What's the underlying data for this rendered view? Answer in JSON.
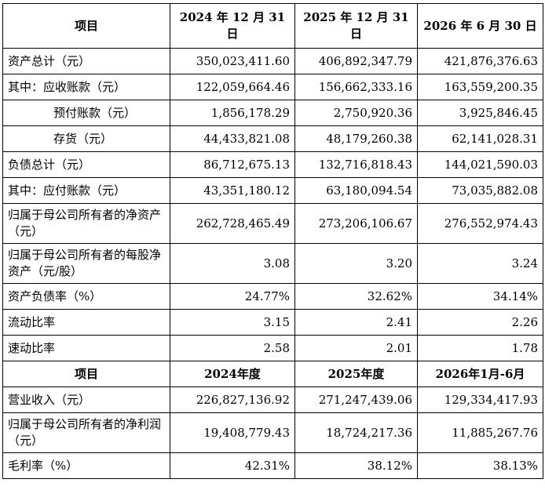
{
  "header1": {
    "col0": "项目",
    "col1": "2024 年 12 月 31 日",
    "col2": "2025 年 12 月 31 日",
    "col3": "2026 年 6 月 30 日"
  },
  "balance_rows": [
    {
      "label": "资产总计（元）",
      "v1": "350,023,411.60",
      "v2": "406,892,347.79",
      "v3": "421,876,376.63"
    },
    {
      "label": "其中：应收账款（元）",
      "v1": "122,059,664.46",
      "v2": "156,662,333.16",
      "v3": "163,559,200.35"
    },
    {
      "label": "预付账款（元）",
      "v1": "1,856,178.29",
      "v2": "2,750,920.36",
      "v3": "3,925,846.45"
    },
    {
      "label": "存货（元）",
      "v1": "44,433,821.08",
      "v2": "48,179,260.38",
      "v3": "62,141,028.31"
    },
    {
      "label": "负债总计（元）",
      "v1": "86,712,675.13",
      "v2": "132,716,818.43",
      "v3": "144,021,590.03"
    },
    {
      "label": "其中：应付账款（元）",
      "v1": "43,351,180.12",
      "v2": "63,180,094.54",
      "v3": "73,035,882.08"
    },
    {
      "label": "归属于母公司所有者的净资产（元）",
      "v1": "262,728,465.49",
      "v2": "273,206,106.67",
      "v3": "276,552,974.43"
    },
    {
      "label": "归属于母公司所有者的每股净资产（元/股）",
      "v1": "3.08",
      "v2": "3.20",
      "v3": "3.24"
    },
    {
      "label": "资产负债率（%）",
      "v1": "24.77%",
      "v2": "32.62%",
      "v3": "34.14%"
    },
    {
      "label": "流动比率",
      "v1": "3.15",
      "v2": "2.41",
      "v3": "2.26"
    },
    {
      "label": "速动比率",
      "v1": "2.58",
      "v2": "2.01",
      "v3": "1.78"
    }
  ],
  "header2": {
    "col0": "项目",
    "col1": "2024年度",
    "col2": "2025年度",
    "col3": "2026年1月-6月"
  },
  "income_rows": [
    {
      "label": "营业收入（元）",
      "v1": "226,827,136.92",
      "v2": "271,247,439.06",
      "v3": "129,334,417.93"
    },
    {
      "label": "归属于母公司所有者的净利润（元）",
      "v1": "19,408,779.43",
      "v2": "18,724,217.36",
      "v3": "11,885,267.76"
    },
    {
      "label": "毛利率（%）",
      "v1": "42.31%",
      "v2": "38.12%",
      "v3": "38.13%"
    }
  ]
}
